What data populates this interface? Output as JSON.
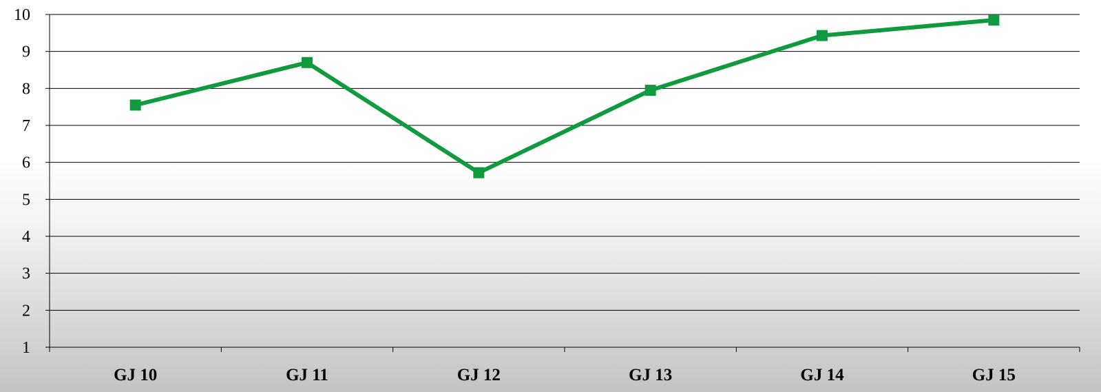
{
  "chart_data": {
    "type": "line",
    "categories": [
      "GJ 10",
      "GJ 11",
      "GJ 12",
      "GJ 13",
      "GJ 14",
      "GJ 15"
    ],
    "series": [
      {
        "values": [
          7.55,
          8.7,
          5.72,
          7.95,
          9.43,
          9.85
        ]
      }
    ],
    "ylim": [
      1,
      10
    ],
    "yticks": [
      1,
      2,
      3,
      4,
      5,
      6,
      7,
      8,
      9,
      10
    ],
    "grid": true,
    "legend": "none",
    "marker": "square",
    "colors": {
      "series": "#0f9a3e"
    }
  }
}
